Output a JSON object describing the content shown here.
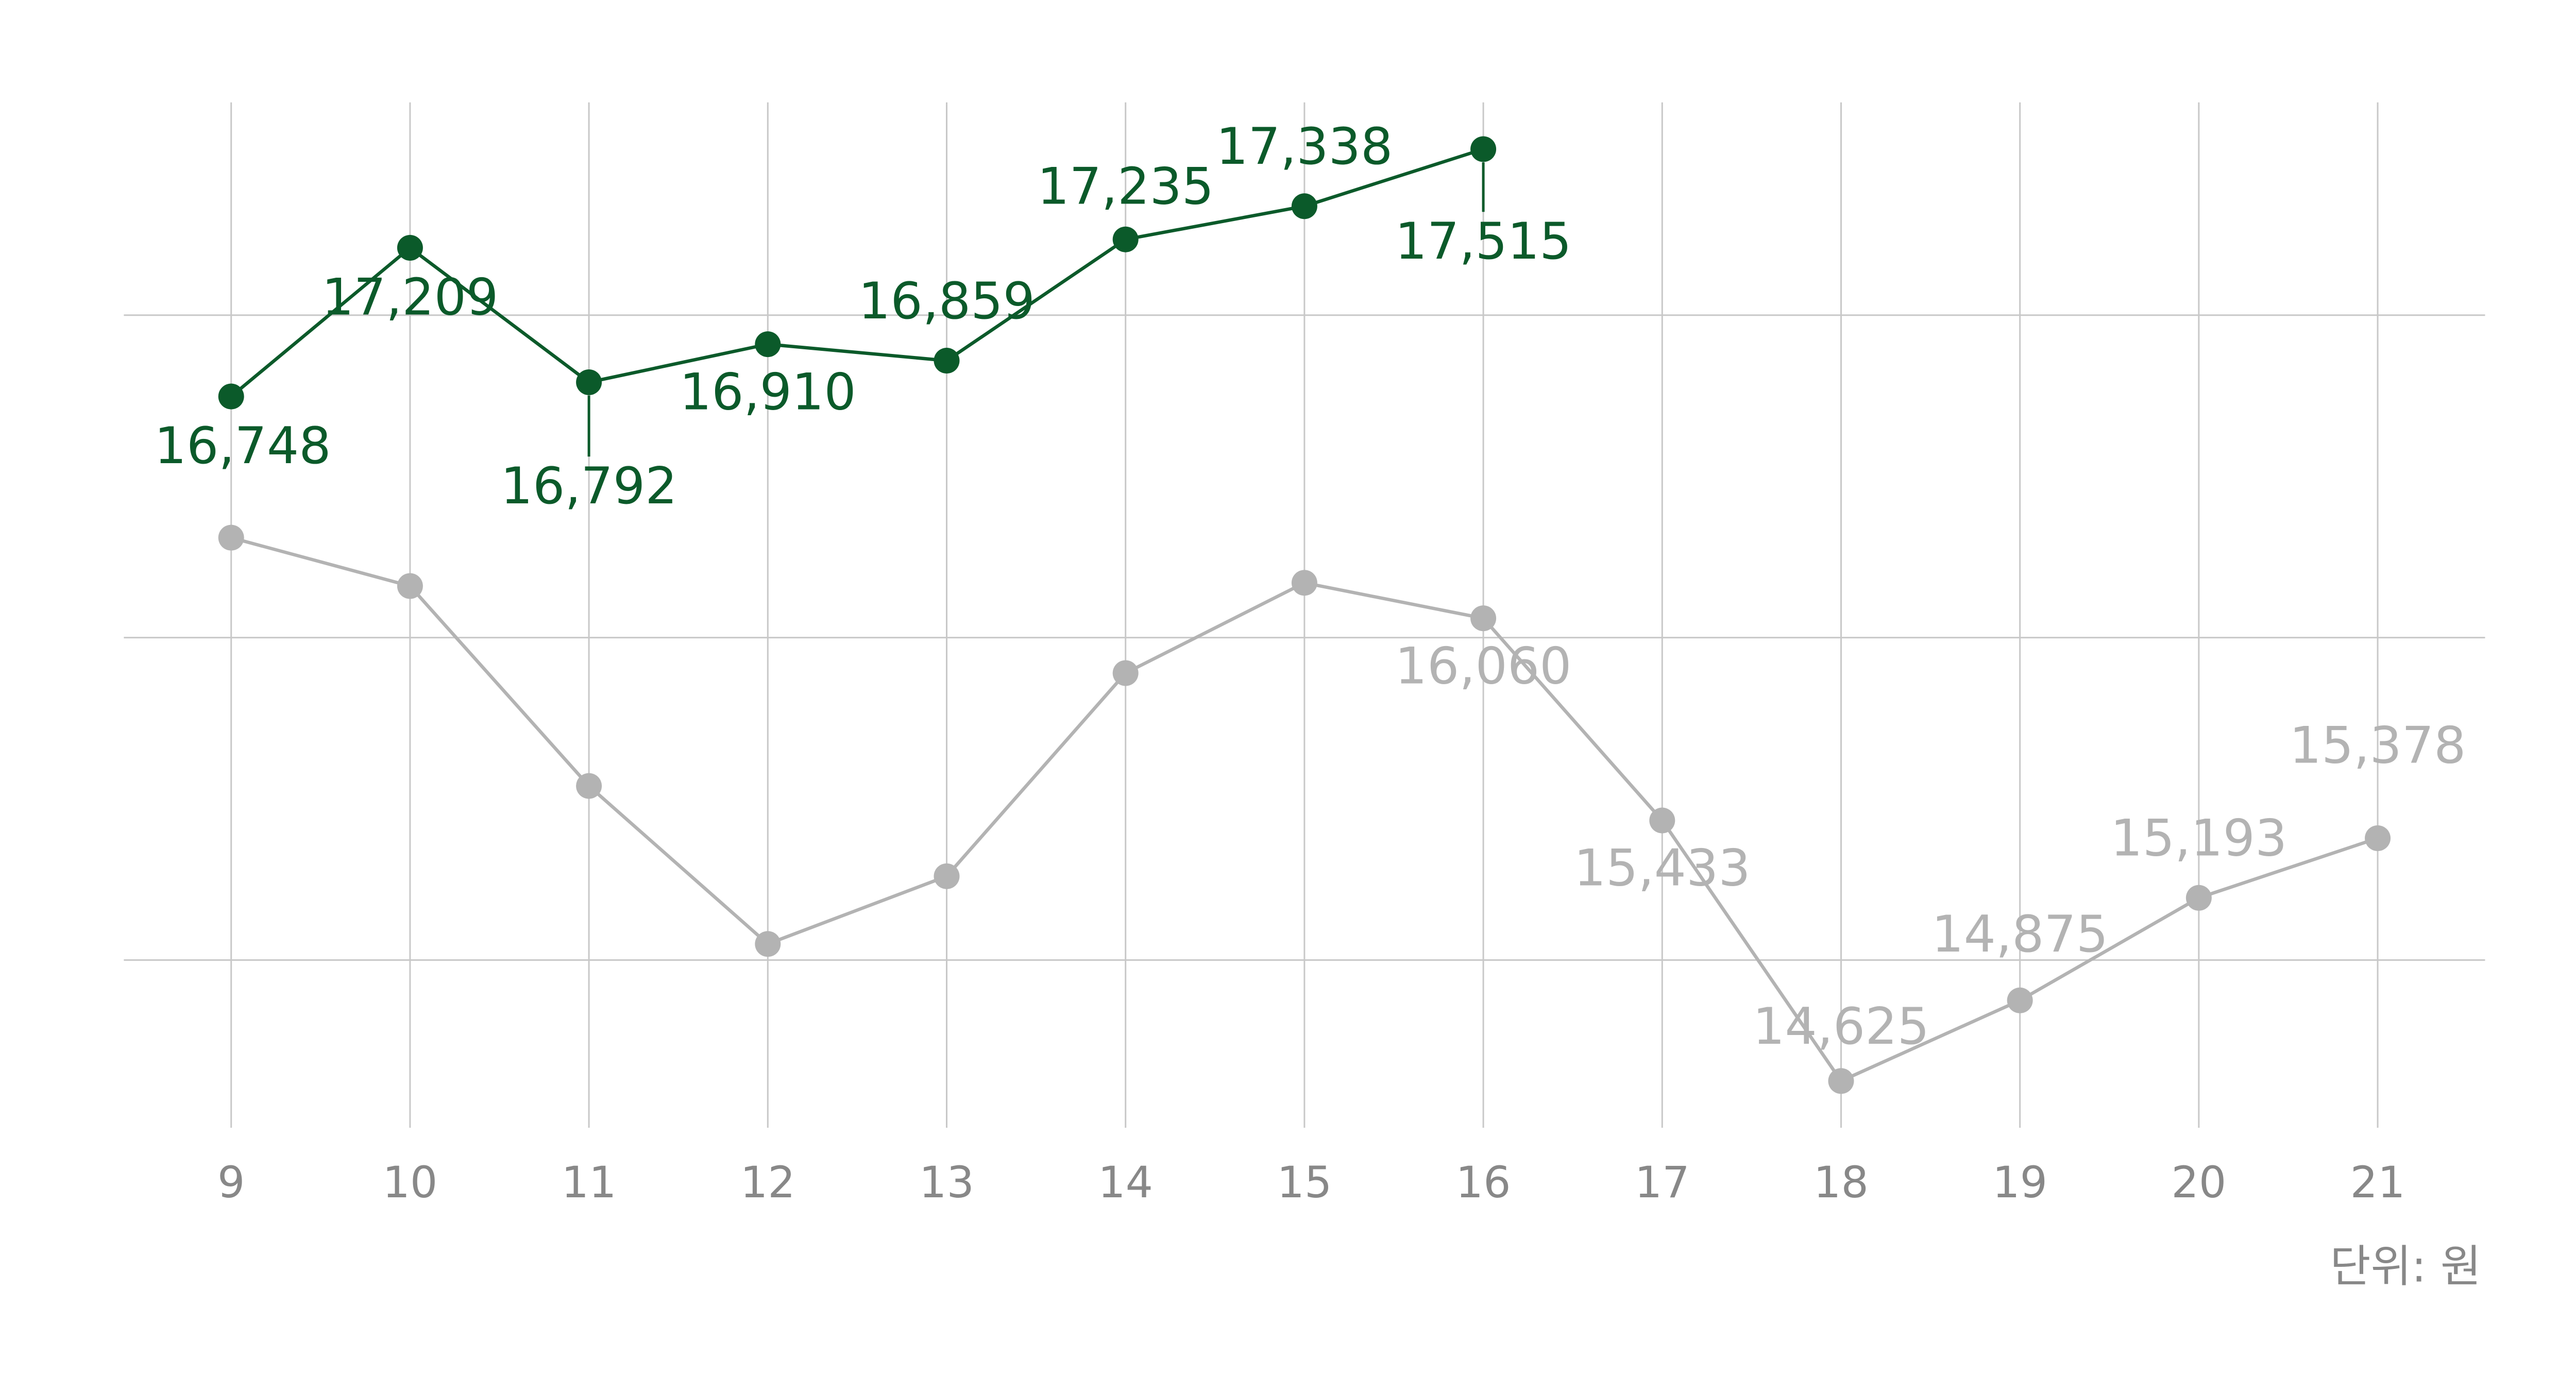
{
  "chart_data": {
    "type": "line",
    "categories": [
      "9",
      "10",
      "11",
      "12",
      "13",
      "14",
      "15",
      "16",
      "17",
      "18",
      "19",
      "20",
      "21"
    ],
    "series": [
      {
        "color": "#0b5a2a",
        "values": [
          16748,
          17209,
          16792,
          16910,
          16859,
          17235,
          17338,
          17515,
          null,
          null,
          null,
          null,
          null
        ],
        "value_labels": [
          "16,748",
          "17,209",
          "16,792",
          "16,910",
          "16,859",
          "17,235",
          "17,338",
          "17,515",
          null,
          null,
          null,
          null,
          null
        ]
      },
      {
        "color": "#b3b3b3",
        "values": [
          16310,
          16160,
          15540,
          15050,
          15260,
          15890,
          16170,
          16060,
          15433,
          14625,
          14875,
          15193,
          15378
        ],
        "value_labels": [
          null,
          null,
          null,
          null,
          null,
          null,
          null,
          "16,060",
          "15,433",
          "14,625",
          "14,875",
          "15,193",
          "15,378"
        ]
      }
    ],
    "ylim": [
      14480,
      17660
    ],
    "yticks": [
      15000,
      16000,
      17000
    ],
    "grid": true,
    "unit_note": "단위: 원"
  }
}
